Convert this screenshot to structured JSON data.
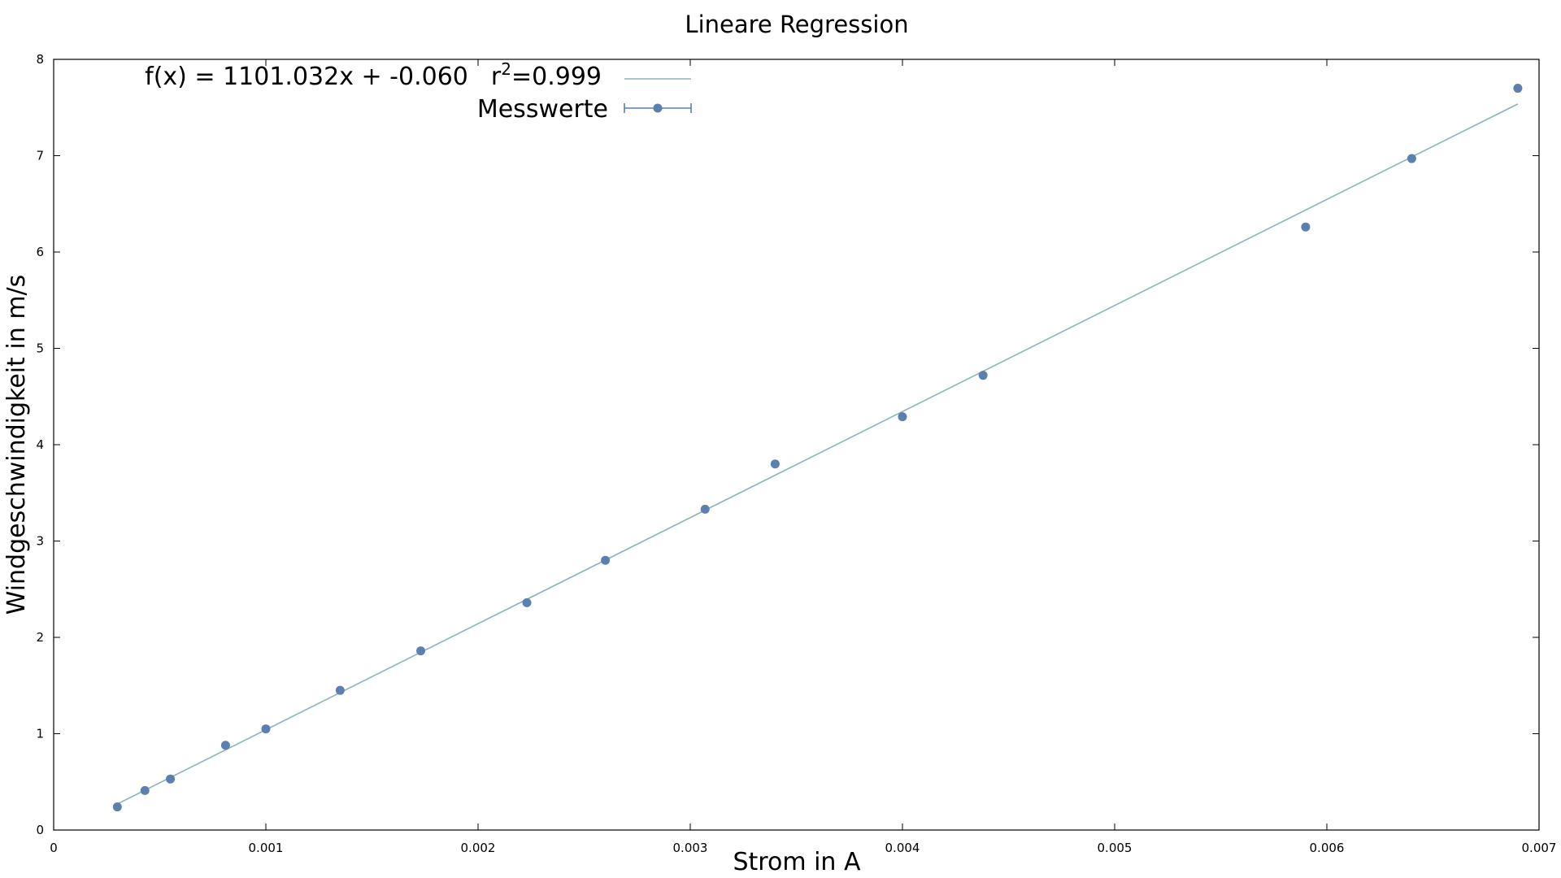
{
  "chart_data": {
    "type": "scatter",
    "title": "Lineare Regression",
    "xlabel": "Strom in  A",
    "ylabel": "Windgeschwindigkeit in m/s",
    "xlim": [
      0,
      0.007
    ],
    "ylim": [
      0,
      8
    ],
    "x_ticks": [
      "0",
      "0.001",
      "0.002",
      "0.003",
      "0.004",
      "0.005",
      "0.006",
      "0.007"
    ],
    "y_ticks": [
      "0",
      "1",
      "2",
      "3",
      "4",
      "5",
      "6",
      "7",
      "8"
    ],
    "grid": false,
    "legend_position": "top-left",
    "series": [
      {
        "name": "Messwerte",
        "type": "scatter",
        "color": "#5b7faf",
        "x": [
          0.0003,
          0.00043,
          0.00055,
          0.00081,
          0.001,
          0.00135,
          0.00173,
          0.00223,
          0.0026,
          0.00307,
          0.0034,
          0.004,
          0.00438,
          0.0059,
          0.0064,
          0.0069
        ],
        "y": [
          0.24,
          0.41,
          0.53,
          0.88,
          1.05,
          1.45,
          1.86,
          2.36,
          2.8,
          3.33,
          3.8,
          4.29,
          4.72,
          6.26,
          6.97,
          7.7
        ]
      },
      {
        "name_parts": {
          "fx": "f(x) = 1101.032x + -0.060",
          "r_base": "r",
          "r_sup": "2",
          "r_value": "=0.999"
        },
        "type": "line",
        "color": "#8bb2bb",
        "slope": 1101.032,
        "intercept": -0.06,
        "x_range": [
          0.0003,
          0.0069
        ]
      }
    ]
  }
}
